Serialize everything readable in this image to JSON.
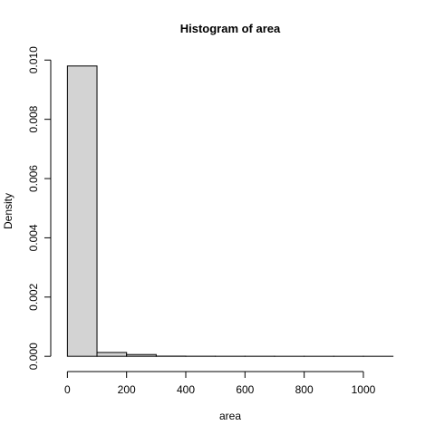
{
  "chart_data": {
    "type": "bar",
    "title": "Histogram of area",
    "xlabel": "area",
    "ylabel": "Density",
    "bin_edges": [
      0,
      100,
      200,
      300,
      400,
      500,
      600,
      700,
      800,
      900,
      1000,
      1100
    ],
    "values": [
      0.0098,
      0.00013,
      6e-05,
      6e-06,
      3e-06,
      2e-06,
      2e-06,
      1e-06,
      1e-06,
      1e-06,
      1e-06
    ],
    "xlim": [
      0,
      1100
    ],
    "ylim": [
      0,
      0.0098
    ],
    "x_ticks": [
      0,
      200,
      400,
      600,
      800,
      1000
    ],
    "x_tick_labels": [
      "0",
      "200",
      "400",
      "600",
      "800",
      "1000"
    ],
    "y_ticks": [
      0,
      0.002,
      0.004,
      0.006,
      0.008,
      0.01
    ],
    "y_tick_labels": [
      "0.000",
      "0.002",
      "0.004",
      "0.006",
      "0.008",
      "0.010"
    ],
    "grid": false,
    "colors": {
      "bar_fill": "#d3d3d3",
      "bar_stroke": "#000000"
    }
  }
}
